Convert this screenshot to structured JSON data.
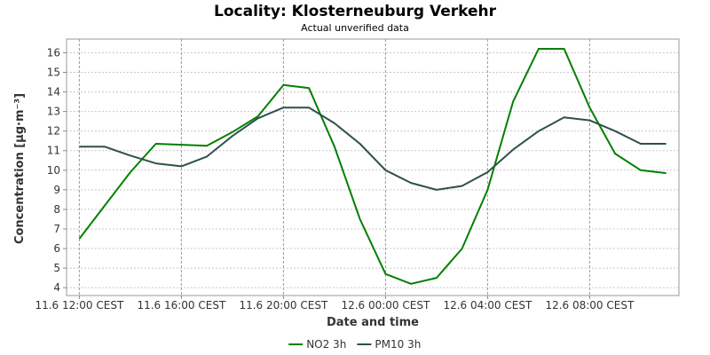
{
  "chart_data": {
    "type": "line",
    "title": "Locality: Klosterneuburg Verkehr",
    "subtitle": "Actual unverified data",
    "xlabel": "Date and time",
    "ylabel": "Concentration [µg·m⁻³]",
    "ylim": [
      3.6,
      16.7
    ],
    "xlim": [
      -0.5,
      23.5
    ],
    "yticks": [
      4,
      5,
      6,
      7,
      8,
      9,
      10,
      11,
      12,
      13,
      14,
      15,
      16
    ],
    "x_ticks": [
      {
        "x": 0,
        "label": "11.6 12:00 CEST"
      },
      {
        "x": 4,
        "label": "11.6 16:00 CEST"
      },
      {
        "x": 8,
        "label": "11.6 20:00 CEST"
      },
      {
        "x": 12,
        "label": "12.6 00:00 CEST"
      },
      {
        "x": 16,
        "label": "12.6 04:00 CEST"
      },
      {
        "x": 20,
        "label": "12.6 08:00 CEST"
      }
    ],
    "grid": true,
    "legend_position": "bottom",
    "x": [
      0,
      1,
      2,
      3,
      4,
      5,
      6,
      7,
      8,
      9,
      10,
      11,
      12,
      13,
      14,
      15,
      16,
      17,
      18,
      19,
      20,
      21,
      22,
      23
    ],
    "series": [
      {
        "name": "NO2 3h",
        "color": "#008000",
        "values": [
          6.5,
          8.2,
          9.9,
          11.35,
          11.3,
          11.25,
          11.95,
          12.75,
          14.35,
          14.2,
          11.2,
          7.5,
          4.7,
          4.2,
          4.5,
          6.0,
          9.0,
          13.5,
          16.2,
          16.2,
          13.2,
          10.85,
          10.0,
          9.85
        ]
      },
      {
        "name": "PM10 3h",
        "color": "#2f4f4f",
        "values": [
          11.2,
          11.2,
          10.75,
          10.35,
          10.2,
          10.7,
          11.75,
          12.65,
          13.2,
          13.2,
          12.4,
          11.35,
          10.0,
          9.35,
          9.0,
          9.2,
          9.9,
          11.05,
          12.0,
          12.7,
          12.55,
          12.0,
          11.35,
          11.35
        ]
      }
    ]
  }
}
